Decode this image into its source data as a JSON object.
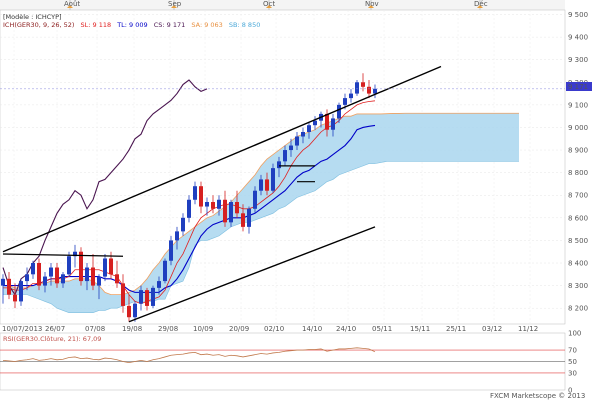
{
  "header": {
    "mode": "[Modèle : ICHCYP]",
    "instrument": "ICH(GER30, 9, 26, 52)",
    "sl": "SL: 9 118",
    "tl": "TL: 9 009",
    "cs": "CS: 9 171",
    "sa": "SA: 9 063",
    "sb": "SB: 8 850"
  },
  "rsi_header": "RSI(GER30.Clôture, 21): 67,09",
  "footer": "FXCM Marketscope © 2013",
  "price_badge": "9 171",
  "colors": {
    "up_candle": "#1f3fbf",
    "down_candle": "#d62020",
    "tenkan": "#e02020",
    "kijun": "#0000c8",
    "chikou": "#4a1550",
    "cloud_fill": "#a9d6ee",
    "cloud_edge": "#f0a060",
    "trendline": "#000000",
    "rsi_line": "#c0784a",
    "rsi_levels": "#e04040"
  },
  "chart_data": [
    {
      "type": "candlestick",
      "title": "",
      "top_month_labels": [
        "Août",
        "Sep",
        "Oct",
        "Nov",
        "Déc"
      ],
      "x_tick_labels": [
        "10/07/2013",
        "26/07",
        "07/08",
        "19/08",
        "29/08",
        "10/09",
        "20/09",
        "02/10",
        "14/10",
        "24/10",
        "05/11",
        "15/11",
        "25/11",
        "03/12",
        "11/12"
      ],
      "y_tick_labels": [
        "9 500",
        "9 400",
        "9 300",
        "9 200",
        "9 100",
        "9 000",
        "8 900",
        "8 800",
        "8 700",
        "8 600",
        "8 500",
        "8 400",
        "8 300",
        "8 200"
      ],
      "ylim": [
        8130,
        9520
      ],
      "grid": true,
      "candles": [
        {
          "o": 8300,
          "h": 8350,
          "l": 8220,
          "c": 8330
        },
        {
          "o": 8330,
          "h": 8360,
          "l": 8240,
          "c": 8260
        },
        {
          "o": 8260,
          "h": 8310,
          "l": 8200,
          "c": 8230
        },
        {
          "o": 8230,
          "h": 8330,
          "l": 8210,
          "c": 8320
        },
        {
          "o": 8320,
          "h": 8380,
          "l": 8280,
          "c": 8350
        },
        {
          "o": 8350,
          "h": 8410,
          "l": 8330,
          "c": 8400
        },
        {
          "o": 8400,
          "h": 8420,
          "l": 8280,
          "c": 8300
        },
        {
          "o": 8300,
          "h": 8360,
          "l": 8270,
          "c": 8340
        },
        {
          "o": 8340,
          "h": 8400,
          "l": 8300,
          "c": 8380
        },
        {
          "o": 8380,
          "h": 8400,
          "l": 8290,
          "c": 8310
        },
        {
          "o": 8310,
          "h": 8360,
          "l": 8290,
          "c": 8350
        },
        {
          "o": 8350,
          "h": 8450,
          "l": 8340,
          "c": 8430
        },
        {
          "o": 8430,
          "h": 8480,
          "l": 8380,
          "c": 8450
        },
        {
          "o": 8450,
          "h": 8470,
          "l": 8300,
          "c": 8320
        },
        {
          "o": 8320,
          "h": 8400,
          "l": 8280,
          "c": 8380
        },
        {
          "o": 8380,
          "h": 8440,
          "l": 8280,
          "c": 8300
        },
        {
          "o": 8300,
          "h": 8350,
          "l": 8240,
          "c": 8340
        },
        {
          "o": 8340,
          "h": 8440,
          "l": 8320,
          "c": 8420
        },
        {
          "o": 8420,
          "h": 8450,
          "l": 8330,
          "c": 8350
        },
        {
          "o": 8350,
          "h": 8410,
          "l": 8290,
          "c": 8310
        },
        {
          "o": 8310,
          "h": 8350,
          "l": 8180,
          "c": 8210
        },
        {
          "o": 8210,
          "h": 8260,
          "l": 8140,
          "c": 8160
        },
        {
          "o": 8160,
          "h": 8230,
          "l": 8140,
          "c": 8220
        },
        {
          "o": 8220,
          "h": 8300,
          "l": 8190,
          "c": 8280
        },
        {
          "o": 8280,
          "h": 8290,
          "l": 8190,
          "c": 8210
        },
        {
          "o": 8210,
          "h": 8300,
          "l": 8200,
          "c": 8290
        },
        {
          "o": 8290,
          "h": 8340,
          "l": 8260,
          "c": 8320
        },
        {
          "o": 8320,
          "h": 8420,
          "l": 8310,
          "c": 8410
        },
        {
          "o": 8410,
          "h": 8520,
          "l": 8390,
          "c": 8500
        },
        {
          "o": 8500,
          "h": 8560,
          "l": 8460,
          "c": 8540
        },
        {
          "o": 8540,
          "h": 8620,
          "l": 8520,
          "c": 8600
        },
        {
          "o": 8600,
          "h": 8700,
          "l": 8580,
          "c": 8680
        },
        {
          "o": 8680,
          "h": 8760,
          "l": 8660,
          "c": 8740
        },
        {
          "o": 8740,
          "h": 8760,
          "l": 8620,
          "c": 8650
        },
        {
          "o": 8650,
          "h": 8690,
          "l": 8610,
          "c": 8670
        },
        {
          "o": 8670,
          "h": 8700,
          "l": 8620,
          "c": 8640
        },
        {
          "o": 8640,
          "h": 8700,
          "l": 8610,
          "c": 8680
        },
        {
          "o": 8680,
          "h": 8720,
          "l": 8560,
          "c": 8580
        },
        {
          "o": 8580,
          "h": 8680,
          "l": 8560,
          "c": 8670
        },
        {
          "o": 8670,
          "h": 8720,
          "l": 8600,
          "c": 8620
        },
        {
          "o": 8620,
          "h": 8660,
          "l": 8540,
          "c": 8560
        },
        {
          "o": 8560,
          "h": 8650,
          "l": 8530,
          "c": 8640
        },
        {
          "o": 8640,
          "h": 8740,
          "l": 8620,
          "c": 8720
        },
        {
          "o": 8720,
          "h": 8790,
          "l": 8700,
          "c": 8770
        },
        {
          "o": 8770,
          "h": 8800,
          "l": 8700,
          "c": 8720
        },
        {
          "o": 8720,
          "h": 8840,
          "l": 8710,
          "c": 8820
        },
        {
          "o": 8820,
          "h": 8870,
          "l": 8780,
          "c": 8850
        },
        {
          "o": 8850,
          "h": 8920,
          "l": 8830,
          "c": 8900
        },
        {
          "o": 8900,
          "h": 8950,
          "l": 8870,
          "c": 8920
        },
        {
          "o": 8920,
          "h": 8980,
          "l": 8900,
          "c": 8960
        },
        {
          "o": 8960,
          "h": 9000,
          "l": 8930,
          "c": 8980
        },
        {
          "o": 8980,
          "h": 9020,
          "l": 8950,
          "c": 9010
        },
        {
          "o": 9010,
          "h": 9050,
          "l": 8990,
          "c": 9030
        },
        {
          "o": 9030,
          "h": 9070,
          "l": 9000,
          "c": 9060
        },
        {
          "o": 9060,
          "h": 9080,
          "l": 8960,
          "c": 8990
        },
        {
          "o": 8990,
          "h": 9060,
          "l": 8960,
          "c": 9040
        },
        {
          "o": 9040,
          "h": 9110,
          "l": 9020,
          "c": 9100
        },
        {
          "o": 9100,
          "h": 9150,
          "l": 9080,
          "c": 9130
        },
        {
          "o": 9130,
          "h": 9170,
          "l": 9110,
          "c": 9150
        },
        {
          "o": 9150,
          "h": 9210,
          "l": 9140,
          "c": 9200
        },
        {
          "o": 9200,
          "h": 9240,
          "l": 9160,
          "c": 9180
        },
        {
          "o": 9180,
          "h": 9210,
          "l": 9130,
          "c": 9150
        },
        {
          "o": 9150,
          "h": 9190,
          "l": 9130,
          "c": 9171
        }
      ],
      "tenkan": [
        8290,
        8290,
        8280,
        8280,
        8290,
        8310,
        8310,
        8320,
        8330,
        8330,
        8330,
        8340,
        8370,
        8370,
        8370,
        8370,
        8370,
        8360,
        8350,
        8340,
        8300,
        8260,
        8230,
        8220,
        8230,
        8240,
        8250,
        8280,
        8340,
        8400,
        8440,
        8500,
        8560,
        8600,
        8620,
        8640,
        8650,
        8660,
        8660,
        8650,
        8640,
        8640,
        8650,
        8670,
        8690,
        8710,
        8740,
        8780,
        8830,
        8870,
        8900,
        8920,
        8950,
        8980,
        9000,
        9010,
        9030,
        9060,
        9080,
        9100,
        9110,
        9115,
        9118
      ],
      "kijun": [
        8300,
        8300,
        8300,
        8300,
        8300,
        8300,
        8310,
        8320,
        8330,
        8330,
        8340,
        8340,
        8340,
        8340,
        8340,
        8340,
        8340,
        8330,
        8330,
        8320,
        8300,
        8280,
        8270,
        8270,
        8270,
        8270,
        8270,
        8290,
        8300,
        8330,
        8370,
        8420,
        8470,
        8520,
        8550,
        8570,
        8580,
        8590,
        8600,
        8600,
        8600,
        8610,
        8620,
        8640,
        8660,
        8680,
        8700,
        8720,
        8750,
        8780,
        8800,
        8810,
        8830,
        8850,
        8860,
        8880,
        8900,
        8920,
        8950,
        8990,
        9000,
        9005,
        9009
      ],
      "chikou": [
        8380,
        8300,
        8260,
        8330,
        8350,
        8400,
        8430,
        8500,
        8560,
        8620,
        8660,
        8680,
        8720,
        8700,
        8640,
        8680,
        8760,
        8770,
        8800,
        8830,
        8860,
        8900,
        8950,
        8970,
        9030,
        9060,
        9080,
        9100,
        9120,
        9150,
        9190,
        9210,
        9180,
        9160,
        9171
      ],
      "senkou_a": [
        8300,
        8300,
        8290,
        8290,
        8290,
        8300,
        8310,
        8310,
        8320,
        8320,
        8320,
        8320,
        8330,
        8330,
        8330,
        8320,
        8300,
        8270,
        8260,
        8260,
        8260,
        8270,
        8280,
        8300,
        8330,
        8370,
        8400,
        8440,
        8470,
        8500,
        8520,
        8540,
        8560,
        8580,
        8600,
        8610,
        8630,
        8650,
        8670,
        8700,
        8730,
        8760,
        8790,
        8830,
        8860,
        8880,
        8900,
        8920,
        8940,
        8960,
        8970,
        8980,
        8990,
        9010,
        9020,
        9030,
        9040,
        9050,
        9050,
        9060,
        9060,
        9060,
        9060,
        9060,
        9061,
        9062,
        9062,
        9063,
        9063,
        9063,
        9063,
        9063,
        9063,
        9063,
        9063,
        9063,
        9063,
        9063,
        9063,
        9063,
        9063,
        9063,
        9063,
        9063,
        9063,
        9063,
        9063
      ],
      "senkou_b": [
        8260,
        8260,
        8260,
        8260,
        8260,
        8250,
        8240,
        8230,
        8220,
        8200,
        8190,
        8180,
        8180,
        8180,
        8180,
        8180,
        8190,
        8190,
        8200,
        8200,
        8210,
        8220,
        8230,
        8230,
        8230,
        8230,
        8240,
        8240,
        8300,
        8310,
        8320,
        8380,
        8480,
        8500,
        8500,
        8510,
        8520,
        8540,
        8560,
        8570,
        8580,
        8580,
        8590,
        8600,
        8610,
        8620,
        8640,
        8650,
        8670,
        8690,
        8700,
        8710,
        8720,
        8740,
        8760,
        8770,
        8790,
        8800,
        8810,
        8820,
        8830,
        8840,
        8840,
        8845,
        8850,
        8850,
        8850,
        8850,
        8850,
        8850,
        8850,
        8850,
        8850,
        8850,
        8850,
        8850,
        8850,
        8850,
        8850,
        8850,
        8850,
        8850,
        8850,
        8850,
        8850,
        8850,
        8850
      ],
      "resistance_lines": [
        {
          "from": [
            0,
            8440
          ],
          "to": [
            20,
            8430
          ],
          "type": "horizontal"
        },
        {
          "from": [
            46,
            8830
          ],
          "to": [
            52,
            8830
          ],
          "type": "horizontal"
        },
        {
          "from": [
            49,
            8760
          ],
          "to": [
            52,
            8760
          ],
          "type": "horizontal"
        }
      ],
      "trendlines": [
        {
          "name": "",
          "from": [
            0,
            8450
          ],
          "to": [
            73,
            9270
          ]
        },
        {
          "name": "",
          "from": [
            21,
            8140
          ],
          "to": [
            62,
            8560
          ]
        }
      ]
    },
    {
      "type": "line",
      "title": "RSI(GER30.Clôture, 21): 67,09",
      "y_tick_labels": [
        "100",
        "70",
        "50",
        "30",
        "0"
      ],
      "ylim": [
        0,
        100
      ],
      "levels": [
        70,
        50,
        30
      ],
      "series": [
        {
          "name": "",
          "values": [
            52,
            51,
            50,
            52,
            53,
            55,
            52,
            53,
            55,
            53,
            54,
            57,
            58,
            55,
            56,
            54,
            53,
            56,
            55,
            53,
            50,
            48,
            50,
            52,
            50,
            53,
            55,
            58,
            61,
            62,
            63,
            65,
            66,
            62,
            63,
            61,
            62,
            59,
            61,
            60,
            58,
            60,
            62,
            64,
            63,
            65,
            66,
            68,
            69,
            70,
            70,
            71,
            71,
            72,
            68,
            70,
            72,
            72,
            73,
            74,
            73,
            72,
            67
          ]
        }
      ]
    }
  ]
}
